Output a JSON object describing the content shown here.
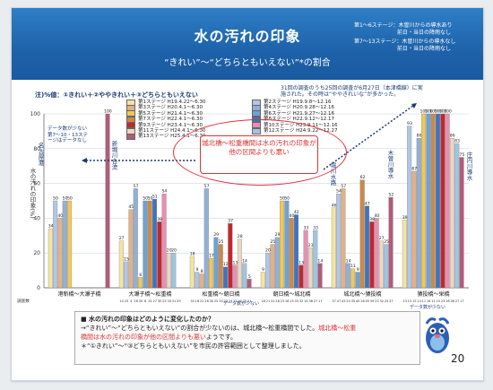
{
  "title": "水の汚れの印象",
  "subtitle": "“きれい”～“どちらともいえない”*の割合",
  "header_notes": [
    "第1～6ステージ：木曽川からの導水あり",
    "前日・当日の降雨なし",
    "第7～13ステージ：木曽川からの導水なし",
    "前日・当日の降雨なし"
  ],
  "note_top_left": "注)%値：①きれい＋②ややきれい＋③どちらともいえない",
  "note_top_right": "31回の調査のうち25回の調査が6月27日（本津橋線）に実施された。その時は“ややきれいな”が多かった。",
  "callout": "城北橋～松重橋間は水の汚れの印象が他の区間よりも悪い",
  "left_note": "データ数が少ない第7～10・13ステージはデータなし",
  "vertical_labels": [
    "名古屋港",
    "新堀川合流",
    "堀川水路",
    "木曽川導水",
    "庄内川導水"
  ],
  "y_axis_title": "水の汚れの印象(%)",
  "x_sub_left": "データ数が少ない",
  "x_sub_right": "データ数が少ない",
  "row_label": "調査数",
  "chart_data": {
    "type": "bar",
    "ylim": [
      0,
      100
    ],
    "ticks": [
      0,
      20,
      40,
      60,
      80,
      100
    ],
    "categories": [
      "港新橋～大瀬子橋",
      "大瀬子橋～松重橋",
      "松重橋～朝日橋",
      "朝日橋～城北橋",
      "城北橋～猿投橋",
      "猿投橋～栄橋"
    ],
    "series": [
      {
        "name": "第1ステージ H19.4.22～6.30",
        "color": "#f4e4a1"
      },
      {
        "name": "第2ステージ H19.9.8～12.16",
        "color": "#b2c6e5"
      },
      {
        "name": "第3ステージ H20.4.1～6.30",
        "color": "#e2b186"
      },
      {
        "name": "第4ステージ H20.9.28～12.16",
        "color": "#93b0d6"
      },
      {
        "name": "第5ステージ H21.4.1～6.30",
        "color": "#f0c75a"
      },
      {
        "name": "第6ステージ H21.9.27～12.16",
        "color": "#6fa2d6"
      },
      {
        "name": "第7ステージ H22.4.1～6.30",
        "color": "#c98a4b"
      },
      {
        "name": "第8ステージ H22.9.12～12.17",
        "color": "#3b75c0"
      },
      {
        "name": "第9ステージ H23.4.1～6.30",
        "color": "#c0282e"
      },
      {
        "name": "第10ステージ H23.9.11～12.16",
        "color": "#e88fb1"
      },
      {
        "name": "第11ステージ H24.4.1～6.30",
        "color": "#ecd7c2"
      },
      {
        "name": "第12ステージ H24.9.22～12.27",
        "color": "#9fc6df"
      },
      {
        "name": "第13ステージ H25.4.1～6.30",
        "color": "#b35a7a"
      }
    ],
    "groups": [
      [
        34,
        50,
        40,
        50,
        50,
        null,
        null,
        null,
        null,
        null,
        null,
        null,
        100
      ],
      [
        27,
        15,
        45,
        57,
        6,
        50,
        50,
        51,
        38,
        54,
        20,
        20,
        null
      ],
      [
        18,
        9,
        8,
        57,
        17,
        29,
        25,
        12,
        37,
        13,
        28,
        14,
        5
      ],
      [
        9,
        20,
        25,
        29,
        50,
        50,
        40,
        42,
        13,
        33,
        23,
        33,
        14
      ],
      [
        46,
        54,
        57,
        14,
        11,
        9,
        62,
        47,
        38,
        40,
        27,
        25,
        52
      ],
      [
        39,
        93,
        67,
        86,
        100,
        100,
        100,
        100,
        100,
        100,
        86,
        83,
        75
      ]
    ],
    "counts": [
      [
        "",
        "",
        "",
        "",
        "",
        "",
        "",
        "",
        "",
        "",
        "",
        "",
        ""
      ],
      [
        "10",
        "25",
        "4",
        "28",
        "30",
        "6",
        "31",
        "27",
        "30",
        "25",
        "33",
        "31",
        "29"
      ],
      [
        "35",
        "18",
        "22",
        "28",
        "30",
        "25",
        "33",
        "23",
        "24",
        "21",
        "20",
        "22",
        "21"
      ],
      [
        "18",
        "21",
        "31",
        "28",
        "23",
        "18",
        "15",
        "33",
        "32",
        "14",
        "36",
        "27",
        "17"
      ],
      [
        "37",
        "47",
        "43",
        "20",
        "35",
        "40",
        "28",
        "45",
        "59",
        "23",
        "32",
        "25",
        "37"
      ],
      [
        "13",
        "15",
        "15",
        "14",
        "11",
        "16",
        "11",
        "15",
        "23",
        "18",
        "36",
        "27",
        "17"
      ]
    ]
  },
  "bottom_q": "■ 水の汚れの印象はどのように変化したのか？",
  "bottom_line1a": "→“きれい”～“どちらともいえない”の割合が少ないのは、城北橋～松重橋間でした。",
  "bottom_line1b": "城北橋～松重",
  "bottom_line2a": "橋間は水の汚れの印象が他の区間よりも悪い",
  "bottom_line2b": "ようです。",
  "bottom_line3": "＊“①きれい”～“③どちらともいえない”を市民の許容範囲として整理しました。",
  "page_number": "20"
}
